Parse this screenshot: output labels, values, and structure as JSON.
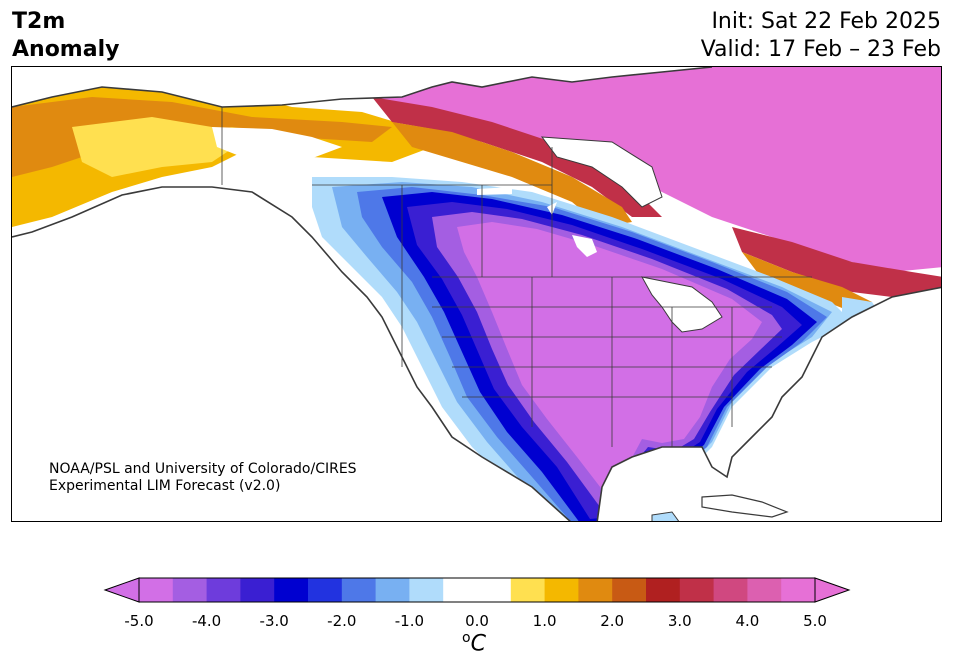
{
  "header": {
    "title_line1": "T2m",
    "title_line2": "Anomaly",
    "init": "Init: Sat 22 Feb 2025",
    "valid": "Valid: 17 Feb – 23 Feb"
  },
  "credit": {
    "line1": "NOAA/PSL and University of Colorado/CIRES",
    "line2": "Experimental LIM Forecast (v2.0)"
  },
  "colorbar": {
    "unit_base": "C",
    "unit_super": "o",
    "ticks": [
      "-5.0",
      "-4.0",
      "-3.0",
      "-2.0",
      "-1.0",
      "0.0",
      "1.0",
      "2.0",
      "3.0",
      "4.0",
      "5.0"
    ],
    "colors": [
      "#d26fe6",
      "#a45ee2",
      "#6e3cdc",
      "#3a1fd2",
      "#0000d0",
      "#2233e0",
      "#4e78e8",
      "#78b0f2",
      "#b0dcfb",
      "#ffffff",
      "#ffffff",
      "#ffe050",
      "#f4b800",
      "#e08a10",
      "#c85a14",
      "#b02020",
      "#c03048",
      "#d04880",
      "#dc60b0",
      "#e670d6"
    ]
  },
  "map": {
    "colors": {
      "ocean": "#ffffff",
      "land_outline": "#3a3a3a",
      "strong_cold": "#d26fe6",
      "cold_core": "#0000d0",
      "warm_pink": "#e670d6"
    }
  }
}
